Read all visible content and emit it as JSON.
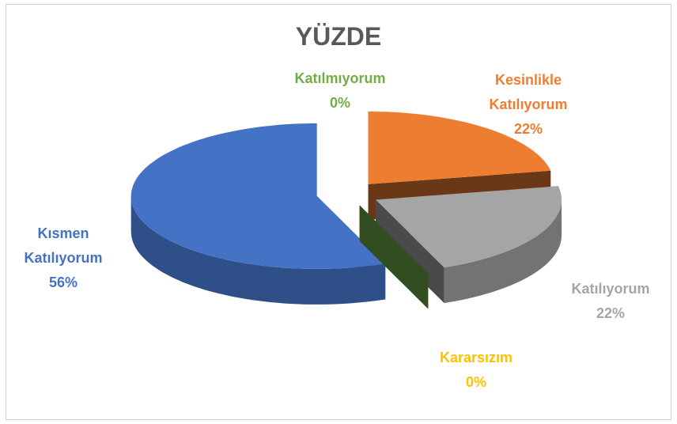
{
  "chart_data": {
    "type": "pie",
    "title": "YÜZDE",
    "categories": [
      "Kesinlikle Katılıyorum",
      "Katılıyorum",
      "Kararsızım",
      "Katılmıyorum",
      "Kısmen Katılıyorum"
    ],
    "values": [
      22,
      22,
      0,
      0,
      56
    ],
    "value_labels": [
      "22%",
      "22%",
      "0%",
      "0%",
      "56%"
    ],
    "colors": [
      "#ed7d31",
      "#a5a5a5",
      "#ffc000",
      "#70ad47",
      "#4472c4"
    ]
  }
}
